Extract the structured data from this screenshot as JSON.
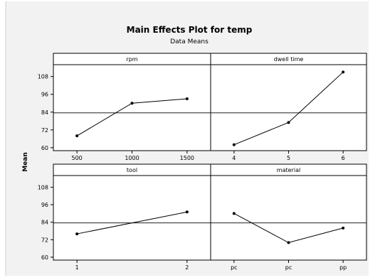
{
  "chart_data": {
    "type": "line",
    "title": "Main Effects Plot for temp",
    "subtitle": "Data Means",
    "ylabel": "Mean",
    "ylim": [
      58,
      116
    ],
    "yticks": [
      60,
      72,
      84,
      96,
      108
    ],
    "grand_mean": 83.5,
    "grid": false,
    "panels": [
      {
        "title": "rpm",
        "categories": [
          "500",
          "1000",
          "1500"
        ],
        "values": [
          68,
          90,
          93
        ]
      },
      {
        "title": "dwell time",
        "categories": [
          "4",
          "5",
          "6"
        ],
        "values": [
          62,
          77,
          111
        ]
      },
      {
        "title": "tool",
        "categories": [
          "1",
          "2"
        ],
        "values": [
          76,
          91
        ]
      },
      {
        "title": "material",
        "categories": [
          "pc",
          "pc",
          "pp"
        ],
        "values": [
          90,
          70,
          80
        ]
      }
    ]
  }
}
